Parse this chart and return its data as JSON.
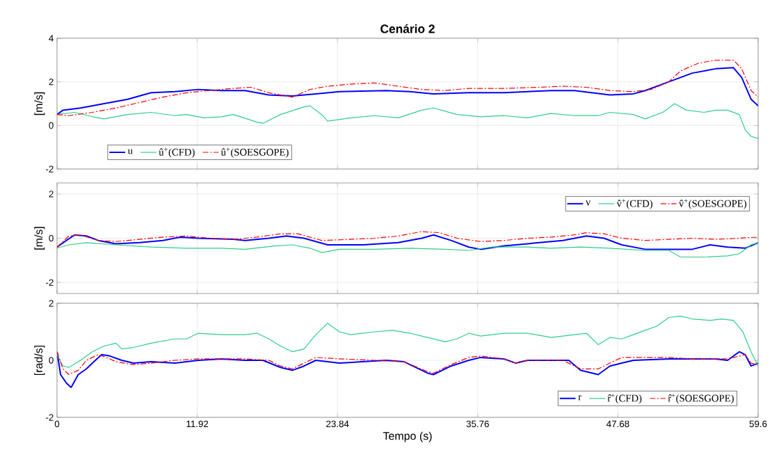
{
  "chart_data": [
    {
      "type": "line",
      "title": "Cenário 2",
      "ylabel": "[m/s]",
      "xlim": [
        0,
        59.6
      ],
      "ylim": [
        -2,
        4
      ],
      "xticks": [
        0,
        11.92,
        23.84,
        35.76,
        47.68,
        59.6
      ],
      "yticks": [
        -2,
        0,
        2,
        4
      ],
      "tick_labels": "y",
      "grid": true,
      "legend": "bottom left",
      "series": [
        {
          "name": "u",
          "color": "#0000ff",
          "line_style": "solid",
          "x": [
            0,
            0.5,
            2,
            4,
            6,
            8,
            10,
            12,
            14,
            16,
            18,
            20,
            22,
            24,
            28,
            30,
            32,
            35,
            38,
            42,
            44,
            47,
            49,
            50,
            52,
            54,
            56,
            57.5,
            58.2,
            59,
            59.6
          ],
          "values": [
            0.5,
            0.7,
            0.8,
            1.0,
            1.2,
            1.5,
            1.55,
            1.65,
            1.6,
            1.6,
            1.4,
            1.35,
            1.45,
            1.55,
            1.6,
            1.55,
            1.45,
            1.5,
            1.5,
            1.6,
            1.6,
            1.4,
            1.45,
            1.6,
            2.0,
            2.4,
            2.6,
            2.65,
            2.2,
            1.2,
            0.9
          ]
        },
        {
          "name": "û$^{+}$(CFD)",
          "color": "#2dcc8a",
          "line_style": "solid",
          "x": [
            0,
            1.5,
            3,
            4,
            6,
            8,
            10,
            11,
            12.5,
            14,
            15,
            17,
            17.5,
            19,
            21,
            21.5,
            22.5,
            23,
            25,
            27,
            29,
            31,
            32,
            34,
            36,
            38,
            40,
            42,
            44,
            46,
            47,
            49,
            50,
            51.5,
            52.5,
            53.5,
            55,
            56,
            57,
            58,
            58.5,
            59,
            59.6
          ],
          "values": [
            0.5,
            0.6,
            0.4,
            0.3,
            0.5,
            0.6,
            0.45,
            0.5,
            0.35,
            0.4,
            0.5,
            0.15,
            0.1,
            0.5,
            0.85,
            0.9,
            0.5,
            0.2,
            0.35,
            0.45,
            0.35,
            0.7,
            0.8,
            0.5,
            0.4,
            0.45,
            0.35,
            0.55,
            0.45,
            0.45,
            0.6,
            0.5,
            0.3,
            0.6,
            1.0,
            0.7,
            0.6,
            0.7,
            0.7,
            0.5,
            -0.2,
            -0.5,
            -0.6
          ]
        },
        {
          "name": "û$^{+}$(SOESGOPE)",
          "color": "#ff0000",
          "line_style": "dashdot",
          "x": [
            0,
            1,
            3,
            5,
            7,
            9,
            11,
            13,
            15,
            16.5,
            18,
            20,
            21.5,
            23,
            25,
            27,
            29,
            31,
            33,
            35,
            38,
            41,
            43,
            45,
            47,
            49,
            50.5,
            52,
            53,
            54.5,
            56,
            57.5,
            58.2,
            59,
            59.6
          ],
          "values": [
            0.5,
            0.45,
            0.6,
            0.8,
            1.05,
            1.3,
            1.5,
            1.6,
            1.7,
            1.75,
            1.5,
            1.3,
            1.65,
            1.8,
            1.9,
            1.95,
            1.8,
            1.65,
            1.6,
            1.7,
            1.7,
            1.75,
            1.8,
            1.75,
            1.6,
            1.55,
            1.65,
            2.0,
            2.5,
            2.85,
            3.0,
            3.0,
            2.6,
            1.6,
            1.3
          ]
        }
      ]
    },
    {
      "type": "line",
      "ylabel": "[m/s]",
      "xlim": [
        0,
        59.6
      ],
      "ylim": [
        -2.5,
        2.5
      ],
      "xticks": [
        0,
        11.92,
        23.84,
        35.76,
        47.68,
        59.6
      ],
      "yticks": [
        -2,
        0,
        2
      ],
      "tick_labels": "y",
      "grid": true,
      "legend": "top right",
      "series": [
        {
          "name": "v",
          "color": "#0000ff",
          "line_style": "solid",
          "x": [
            0,
            0.8,
            1.5,
            2.5,
            3.5,
            5,
            7,
            9,
            10.5,
            12,
            15,
            16,
            18,
            19.5,
            21,
            23,
            26,
            29,
            31,
            32,
            33.5,
            35,
            36,
            38,
            41,
            43,
            45,
            46.5,
            48,
            50,
            52,
            54,
            55.5,
            57,
            58.5,
            59.6
          ],
          "values": [
            -0.4,
            -0.1,
            0.15,
            0.1,
            -0.1,
            -0.25,
            -0.2,
            -0.1,
            0.05,
            0,
            -0.05,
            -0.1,
            0,
            0.1,
            0,
            -0.3,
            -0.3,
            -0.2,
            0,
            0.15,
            -0.1,
            -0.4,
            -0.5,
            -0.35,
            -0.2,
            -0.1,
            0.1,
            0,
            -0.3,
            -0.5,
            -0.5,
            -0.5,
            -0.3,
            -0.4,
            -0.45,
            -0.2
          ]
        },
        {
          "name": "v̂$^{+}$(CFD)",
          "color": "#2dcc8a",
          "line_style": "solid",
          "x": [
            0,
            1,
            2.5,
            5,
            8,
            11,
            14,
            16,
            18.5,
            20,
            21.5,
            22.5,
            24,
            27,
            30,
            33,
            35,
            37,
            40,
            42,
            44.5,
            47,
            50,
            52,
            53,
            55,
            57,
            58,
            59,
            59.6
          ],
          "values": [
            -0.45,
            -0.3,
            -0.2,
            -0.3,
            -0.4,
            -0.45,
            -0.45,
            -0.5,
            -0.35,
            -0.3,
            -0.45,
            -0.65,
            -0.5,
            -0.5,
            -0.45,
            -0.5,
            -0.55,
            -0.4,
            -0.4,
            -0.45,
            -0.4,
            -0.45,
            -0.55,
            -0.55,
            -0.85,
            -0.85,
            -0.8,
            -0.7,
            -0.3,
            -0.2
          ]
        },
        {
          "name": "v̂$^{+}$(SOESGOPE)",
          "color": "#ff0000",
          "line_style": "dashdot",
          "x": [
            0,
            1,
            2,
            3.5,
            5,
            7,
            9,
            11,
            13,
            15,
            17,
            19,
            20.5,
            22.5,
            25,
            27,
            29,
            31,
            32.5,
            34,
            36,
            38,
            40,
            42,
            44,
            45,
            46.5,
            48,
            50,
            52,
            54,
            56,
            58,
            59.6
          ],
          "values": [
            -0.4,
            0.1,
            0.15,
            -0.1,
            -0.15,
            -0.05,
            0.05,
            0.1,
            0,
            -0.05,
            0.05,
            0.2,
            0.2,
            -0.1,
            -0.05,
            0,
            0.1,
            0.3,
            0.25,
            0,
            -0.15,
            -0.1,
            0,
            0.05,
            0.15,
            0.25,
            0.2,
            0,
            -0.1,
            -0.05,
            0,
            -0.05,
            0,
            0.05
          ]
        }
      ]
    },
    {
      "type": "line",
      "ylabel": "[rad/s]",
      "xlabel": "Tempo (s)",
      "xlim": [
        0,
        59.6
      ],
      "ylim": [
        -2,
        2
      ],
      "xticks": [
        0,
        11.92,
        23.84,
        35.76,
        47.68,
        59.6
      ],
      "yticks": [
        -2,
        0,
        2
      ],
      "grid": true,
      "legend": "bottom right",
      "series": [
        {
          "name": "r",
          "color": "#0000ff",
          "line_style": "solid",
          "x": [
            0,
            0.3,
            0.8,
            1.2,
            1.8,
            2.5,
            3,
            3.8,
            4.5,
            5.5,
            6.5,
            8,
            10,
            12,
            14,
            16,
            17.5,
            19,
            20,
            21,
            22,
            24,
            26,
            28,
            29.5,
            31.5,
            32,
            33.5,
            35,
            36,
            38,
            39,
            40,
            42,
            43.5,
            44.5,
            46,
            47,
            48,
            49,
            52,
            54,
            56,
            57,
            58,
            58.5,
            59,
            59.6
          ],
          "values": [
            0.3,
            -0.5,
            -0.8,
            -0.95,
            -0.5,
            -0.3,
            -0.1,
            0.2,
            0.15,
            0,
            -0.1,
            -0.05,
            -0.1,
            0,
            0.05,
            0,
            0,
            -0.25,
            -0.35,
            -0.2,
            0,
            -0.1,
            -0.05,
            0,
            -0.05,
            -0.45,
            -0.5,
            -0.2,
            0,
            0.1,
            0.05,
            -0.1,
            0,
            0,
            0,
            -0.35,
            -0.5,
            -0.2,
            -0.1,
            0,
            0.05,
            0.05,
            0.05,
            0,
            0.3,
            0.2,
            -0.2,
            -0.1
          ]
        },
        {
          "name": "r̂$^{+}$(CFD)",
          "color": "#2dcc8a",
          "line_style": "solid",
          "x": [
            0,
            0.5,
            1,
            2,
            3,
            4,
            5,
            5.5,
            6.5,
            8,
            10,
            11,
            12,
            14,
            16,
            17,
            18,
            19,
            20,
            21,
            22,
            23,
            24,
            25,
            27,
            28.5,
            30,
            31.5,
            33,
            34,
            35,
            36,
            38,
            40,
            42,
            44,
            45,
            46,
            47,
            48,
            49,
            50,
            51,
            52,
            53,
            54,
            55.5,
            56.5,
            57.5,
            58.3,
            59,
            59.6
          ],
          "values": [
            0.2,
            -0.2,
            -0.25,
            0,
            0.3,
            0.5,
            0.6,
            0.4,
            0.45,
            0.6,
            0.75,
            0.75,
            0.95,
            0.9,
            0.9,
            0.95,
            0.75,
            0.5,
            0.3,
            0.4,
            0.9,
            1.3,
            1.0,
            0.9,
            1.0,
            1.05,
            0.95,
            0.8,
            0.65,
            0.75,
            0.95,
            0.85,
            0.95,
            0.95,
            0.8,
            0.9,
            0.95,
            0.55,
            0.8,
            0.75,
            0.9,
            1.05,
            1.2,
            1.5,
            1.55,
            1.45,
            1.4,
            1.45,
            1.4,
            1.0,
            0.3,
            -0.2
          ]
        },
        {
          "name": "r̂$^{+}$(SOESGOPE)",
          "color": "#ff0000",
          "line_style": "dashdot",
          "x": [
            0,
            0.5,
            1,
            1.8,
            2.5,
            3.5,
            4.5,
            5,
            6.5,
            8,
            10,
            12,
            14,
            16,
            18,
            19,
            20,
            21,
            22,
            24,
            27,
            29.5,
            31.5,
            32,
            33.5,
            35,
            36,
            38,
            39,
            40,
            43,
            44.5,
            46,
            47,
            48,
            50,
            52,
            54,
            56,
            57,
            58,
            58.5,
            59,
            59.6
          ],
          "values": [
            0.3,
            -0.3,
            -0.5,
            -0.35,
            0,
            0.2,
            0.05,
            -0.05,
            -0.15,
            -0.1,
            0,
            0.05,
            0.05,
            0.05,
            0,
            -0.2,
            -0.3,
            -0.1,
            0.1,
            0.05,
            0,
            -0.05,
            -0.4,
            -0.45,
            -0.15,
            0.1,
            0.15,
            0.05,
            -0.1,
            0,
            0,
            -0.3,
            -0.3,
            -0.1,
            0.1,
            0.1,
            0.1,
            0.05,
            0.05,
            0.05,
            0.15,
            0.2,
            -0.1,
            -0.15
          ]
        }
      ]
    }
  ]
}
